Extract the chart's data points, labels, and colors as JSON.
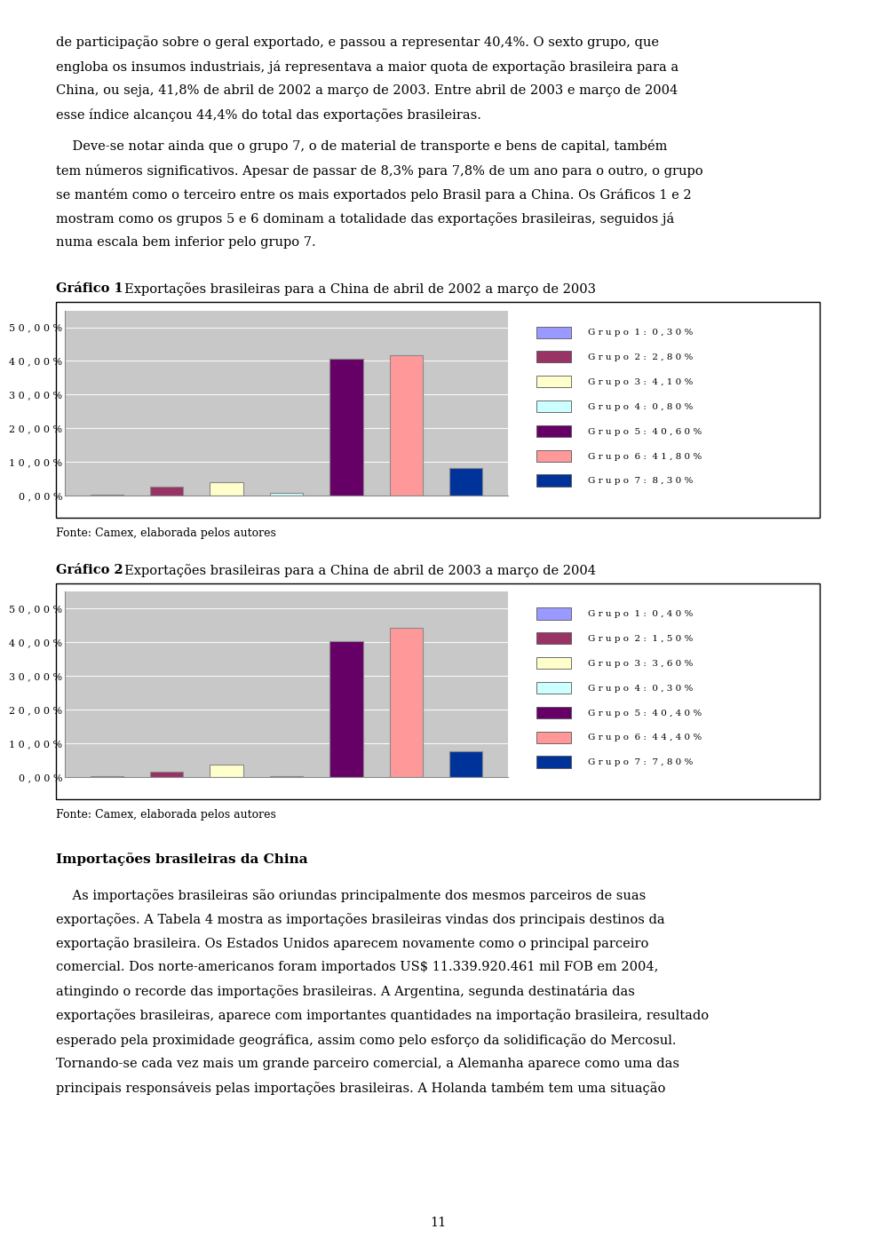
{
  "page_text_top": [
    "de participação sobre o geral exportado, e passou a representar 40,4%. O sexto grupo, que",
    "engloba os insumos industriais, já representava a maior quota de exportação brasileira para a",
    "China, ou seja, 41,8% de abril de 2002 a março de 2003. Entre abril de 2003 e março de 2004",
    "esse índice alcançou 44,4% do total das exportações brasileiras."
  ],
  "page_text_mid": [
    "    Deve-se notar ainda que o grupo 7, o de material de transporte e bens de capital, também",
    "tem números significativos. Apesar de passar de 8,3% para 7,8% de um ano para o outro, o grupo",
    "se mantém como o terceiro entre os mais exportados pelo Brasil para a China. Os Gráficos 1 e 2",
    "mostram como os grupos 5 e 6 dominam a totalidade das exportações brasileiras, seguidos já",
    "numa escala bem inferior pelo grupo 7."
  ],
  "grafico1_title_bold": "Gráfico 1",
  "grafico1_title_rest": " - Exportações brasileiras para a China de abril de 2002 a março de 2003",
  "grafico2_title_bold": "Gráfico 2",
  "grafico2_title_rest": " - Exportações brasileiras para a China de abril de 2003 a março de 2004",
  "fonte_text": "Fonte: Camex, elaborada pelos autores",
  "chart1_values": [
    0.3,
    2.8,
    4.1,
    0.8,
    40.6,
    41.8,
    8.3
  ],
  "chart2_values": [
    0.4,
    1.5,
    3.6,
    0.3,
    40.4,
    44.4,
    7.8
  ],
  "chart1_labels": [
    "G r u p o  1 :  0 , 3 0 %",
    "G r u p o  2 :  2 , 8 0 %",
    "G r u p o  3 :  4 , 1 0 %",
    "G r u p o  4 :  0 , 8 0 %",
    "G r u p o  5 :  4 0 , 6 0 %",
    "G r u p o  6 :  4 1 , 8 0 %",
    "G r u p o  7 :  8 , 3 0 %"
  ],
  "chart2_labels": [
    "G r u p o  1 :  0 , 4 0 %",
    "G r u p o  2 :  1 , 5 0 %",
    "G r u p o  3 :  3 , 6 0 %",
    "G r u p o  4 :  0 , 3 0 %",
    "G r u p o  5 :  4 0 , 4 0 %",
    "G r u p o  6 :  4 4 , 4 0 %",
    "G r u p o  7 :  7 , 8 0 %"
  ],
  "bar_colors": [
    "#9999FF",
    "#993366",
    "#FFFFCC",
    "#CCFFFF",
    "#660066",
    "#FF9999",
    "#003399"
  ],
  "ytick_labels": [
    "0 , 0 0 %",
    "1 0 , 0 0 %",
    "2 0 , 0 0 %",
    "3 0 , 0 0 %",
    "4 0 , 0 0 %",
    "5 0 , 0 0 %"
  ],
  "ytick_values": [
    0,
    10,
    20,
    30,
    40,
    50
  ],
  "ylim": [
    0,
    55
  ],
  "section_title": "Importações brasileiras da China",
  "page_text_bottom": [
    "    As importações brasileiras são oriundas principalmente dos mesmos parceiros de suas",
    "exportações. A Tabela 4 mostra as importações brasileiras vindas dos principais destinos da",
    "exportação brasileira. Os Estados Unidos aparecem novamente como o principal parceiro",
    "comercial. Dos norte-americanos foram importados US$ 11.339.920.461 mil FOB em 2004,",
    "atingindo o recorde das importações brasileiras. A Argentina, segunda destinatária das",
    "exportações brasileiras, aparece com importantes quantidades na importação brasileira, resultado",
    "esperado pela proximidade geográfica, assim como pelo esforço da solidificação do Mercosul.",
    "Tornando-se cada vez mais um grande parceiro comercial, a Alemanha aparece como uma das",
    "principais responsáveis pelas importações brasileiras. A Holanda também tem uma situação"
  ],
  "page_number": "11",
  "bg_color": "#FFFFFF",
  "text_color": "#000000",
  "chart_bg": "#C8C8C8",
  "legend_bg": "#FFFFFF",
  "bar_edge": "#888888"
}
